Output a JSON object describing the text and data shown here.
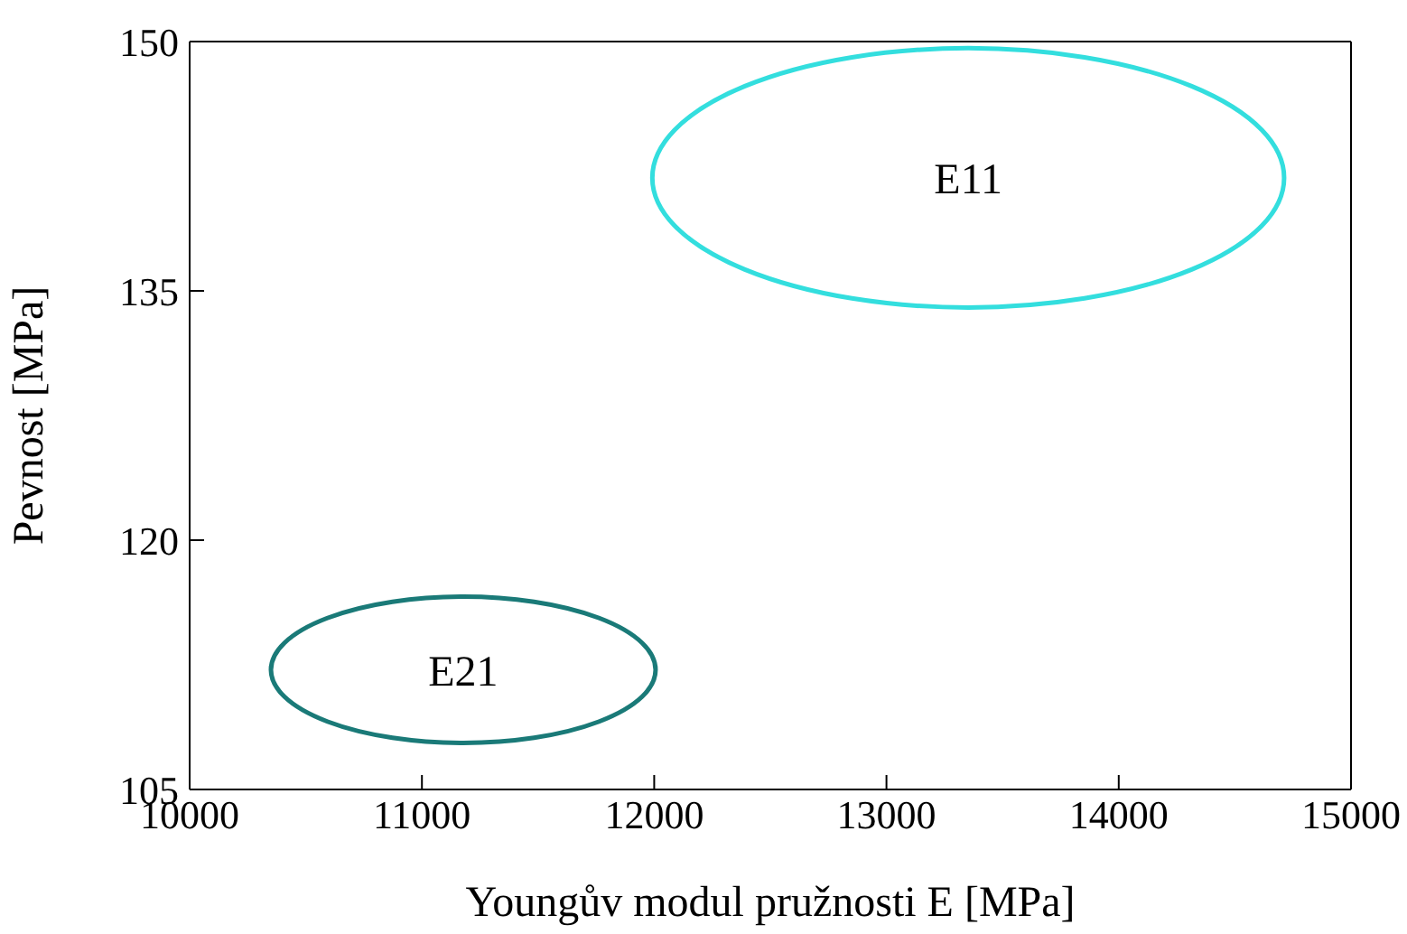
{
  "chart_data": {
    "type": "line",
    "xlabel": "Youngův modul pružnosti E [MPa]",
    "ylabel": "Pevnost [MPa]",
    "xlim": [
      10000,
      15000
    ],
    "xticks": [
      10000,
      11000,
      12000,
      13000,
      14000,
      15000
    ],
    "ylim": [
      105,
      150
    ],
    "yticks": [
      105,
      120,
      135,
      150
    ],
    "annotations": [
      "E11",
      "E21"
    ]
  }
}
